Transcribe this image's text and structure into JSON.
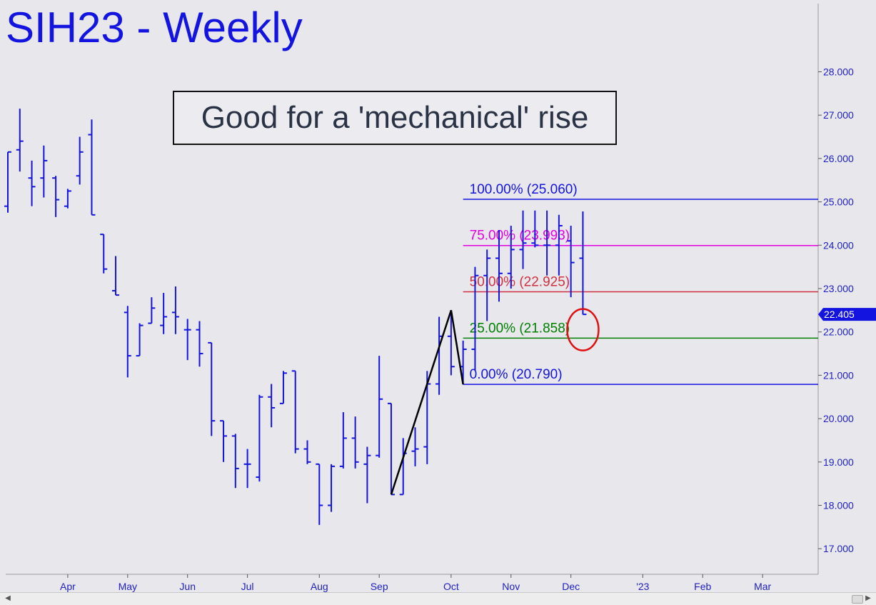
{
  "window": {
    "title": "SIH23 - Weekly"
  },
  "annotation": {
    "text": "Good for a 'mechanical' rise"
  },
  "colors": {
    "bars": "#1414e0",
    "fib_100": "#1414e0",
    "fib_75": "#e000e0",
    "fib_50": "#d03040",
    "fib_25": "#008000",
    "fib_0": "#1414e0",
    "price_tag": "#1414e0",
    "circle": "#e01010",
    "trendline": "#000000"
  },
  "chart_data": {
    "type": "ohlc",
    "title": "SIH23 - Weekly",
    "xlabel": "",
    "ylabel": "",
    "ylim": [
      16.5,
      29.0
    ],
    "y_ticks": [
      "17.000",
      "18.000",
      "19.000",
      "20.000",
      "21.000",
      "22.000",
      "23.000",
      "24.000",
      "25.000",
      "26.000",
      "27.000",
      "28.000"
    ],
    "x_ticks": [
      {
        "label": "Apr",
        "week": 5
      },
      {
        "label": "May",
        "week": 10
      },
      {
        "label": "Jun",
        "week": 15
      },
      {
        "label": "Jul",
        "week": 20
      },
      {
        "label": "Aug",
        "week": 26
      },
      {
        "label": "Sep",
        "week": 31
      },
      {
        "label": "Oct",
        "week": 37
      },
      {
        "label": "Nov",
        "week": 42
      },
      {
        "label": "Dec",
        "week": 47
      },
      {
        "label": "'23",
        "week": 53
      },
      {
        "label": "Feb",
        "week": 58
      },
      {
        "label": "Mar",
        "week": 63
      }
    ],
    "bars": [
      {
        "w": 0,
        "o": 24.9,
        "h": 26.15,
        "l": 24.75,
        "c": 26.15
      },
      {
        "w": 1,
        "o": 26.2,
        "h": 27.15,
        "l": 25.7,
        "c": 26.4
      },
      {
        "w": 2,
        "o": 25.55,
        "h": 25.95,
        "l": 24.9,
        "c": 25.35
      },
      {
        "w": 3,
        "o": 25.55,
        "h": 26.3,
        "l": 25.1,
        "c": 25.95
      },
      {
        "w": 4,
        "o": 25.55,
        "h": 25.6,
        "l": 24.65,
        "c": 25.05
      },
      {
        "w": 5,
        "o": 24.9,
        "h": 25.3,
        "l": 24.85,
        "c": 25.25
      },
      {
        "w": 6,
        "o": 25.6,
        "h": 26.5,
        "l": 25.4,
        "c": 26.15
      },
      {
        "w": 7,
        "o": 26.55,
        "h": 26.9,
        "l": 24.7,
        "c": 24.7
      },
      {
        "w": 8,
        "o": 24.25,
        "h": 24.25,
        "l": 23.35,
        "c": 23.45
      },
      {
        "w": 9,
        "o": 22.95,
        "h": 23.75,
        "l": 22.85,
        "c": 22.85
      },
      {
        "w": 10,
        "o": 22.45,
        "h": 22.6,
        "l": 20.95,
        "c": 21.45
      },
      {
        "w": 11,
        "o": 21.45,
        "h": 22.2,
        "l": 21.45,
        "c": 22.15
      },
      {
        "w": 12,
        "o": 22.2,
        "h": 22.8,
        "l": 22.2,
        "c": 22.55
      },
      {
        "w": 13,
        "o": 22.15,
        "h": 22.9,
        "l": 21.95,
        "c": 22.35
      },
      {
        "w": 14,
        "o": 22.45,
        "h": 23.05,
        "l": 21.95,
        "c": 22.35
      },
      {
        "w": 15,
        "o": 22.05,
        "h": 22.3,
        "l": 21.35,
        "c": 22.05
      },
      {
        "w": 16,
        "o": 22.05,
        "h": 22.25,
        "l": 21.2,
        "c": 21.5
      },
      {
        "w": 17,
        "o": 21.75,
        "h": 21.75,
        "l": 19.6,
        "c": 19.95
      },
      {
        "w": 18,
        "o": 19.95,
        "h": 19.95,
        "l": 19.0,
        "c": 19.6
      },
      {
        "w": 19,
        "o": 19.6,
        "h": 19.65,
        "l": 18.4,
        "c": 18.85
      },
      {
        "w": 20,
        "o": 18.95,
        "h": 19.3,
        "l": 18.4,
        "c": 18.95
      },
      {
        "w": 21,
        "o": 18.65,
        "h": 20.55,
        "l": 18.55,
        "c": 20.5
      },
      {
        "w": 22,
        "o": 20.5,
        "h": 20.8,
        "l": 19.8,
        "c": 20.25
      },
      {
        "w": 23,
        "o": 20.35,
        "h": 21.1,
        "l": 20.35,
        "c": 21.05
      },
      {
        "w": 24,
        "o": 21.1,
        "h": 21.1,
        "l": 19.2,
        "c": 19.3
      },
      {
        "w": 25,
        "o": 19.3,
        "h": 19.5,
        "l": 18.95,
        "c": 19.0
      },
      {
        "w": 26,
        "o": 18.95,
        "h": 18.95,
        "l": 17.55,
        "c": 18.0
      },
      {
        "w": 27,
        "o": 18.0,
        "h": 18.95,
        "l": 17.85,
        "c": 18.9
      },
      {
        "w": 28,
        "o": 18.9,
        "h": 20.15,
        "l": 18.85,
        "c": 19.55
      },
      {
        "w": 29,
        "o": 19.55,
        "h": 20.05,
        "l": 18.85,
        "c": 19.0
      },
      {
        "w": 30,
        "o": 18.95,
        "h": 19.35,
        "l": 18.05,
        "c": 19.15
      },
      {
        "w": 31,
        "o": 19.15,
        "h": 21.45,
        "l": 19.1,
        "c": 20.45
      },
      {
        "w": 32,
        "o": 20.35,
        "h": 20.35,
        "l": 18.25,
        "c": 18.25
      },
      {
        "w": 33,
        "o": 18.25,
        "h": 19.55,
        "l": 18.25,
        "c": 19.2
      },
      {
        "w": 34,
        "o": 19.25,
        "h": 19.8,
        "l": 18.9,
        "c": 19.3
      },
      {
        "w": 35,
        "o": 19.35,
        "h": 21.1,
        "l": 18.95,
        "c": 20.8
      },
      {
        "w": 36,
        "o": 20.8,
        "h": 22.35,
        "l": 20.55,
        "c": 21.9
      },
      {
        "w": 37,
        "o": 21.9,
        "h": 22.5,
        "l": 21.0,
        "c": 21.2
      },
      {
        "w": 38,
        "o": 21.2,
        "h": 21.8,
        "l": 20.8,
        "c": 21.6
      },
      {
        "w": 39,
        "o": 21.6,
        "h": 23.5,
        "l": 21.1,
        "c": 23.3
      },
      {
        "w": 40,
        "o": 23.3,
        "h": 23.9,
        "l": 22.25,
        "c": 23.7
      },
      {
        "w": 41,
        "o": 23.7,
        "h": 24.35,
        "l": 22.7,
        "c": 23.35
      },
      {
        "w": 42,
        "o": 23.35,
        "h": 24.45,
        "l": 23.0,
        "c": 23.9
      },
      {
        "w": 43,
        "o": 23.9,
        "h": 24.8,
        "l": 23.45,
        "c": 24.05
      },
      {
        "w": 44,
        "o": 24.05,
        "h": 24.8,
        "l": 23.95,
        "c": 24.0
      },
      {
        "w": 45,
        "o": 24.0,
        "h": 24.8,
        "l": 23.3,
        "c": 24.0
      },
      {
        "w": 46,
        "o": 24.0,
        "h": 24.7,
        "l": 23.3,
        "c": 24.45
      },
      {
        "w": 47,
        "o": 24.1,
        "h": 24.45,
        "l": 22.8,
        "c": 23.6
      },
      {
        "w": 48,
        "o": 23.7,
        "h": 24.78,
        "l": 22.4,
        "c": 22.405
      }
    ],
    "trendline": [
      {
        "w": 32,
        "v": 18.25
      },
      {
        "w": 37,
        "v": 22.5
      },
      {
        "w": 38,
        "v": 20.79
      }
    ],
    "fib_levels": [
      {
        "label": "100.00% (25.060)",
        "value": 25.06,
        "color_key": "fib_100"
      },
      {
        "label": "75.00% (23.993)",
        "value": 23.993,
        "color_key": "fib_75"
      },
      {
        "label": "50.00% (22.925)",
        "value": 22.925,
        "color_key": "fib_50"
      },
      {
        "label": "25.00% (21.858)",
        "value": 21.858,
        "color_key": "fib_25"
      },
      {
        "label": "0.00% (20.790)",
        "value": 20.79,
        "color_key": "fib_0"
      }
    ],
    "fib_start_week": 38,
    "last_price": {
      "label": "22.405",
      "value": 22.405
    },
    "circle": {
      "week": 48,
      "value": 22.05
    }
  }
}
